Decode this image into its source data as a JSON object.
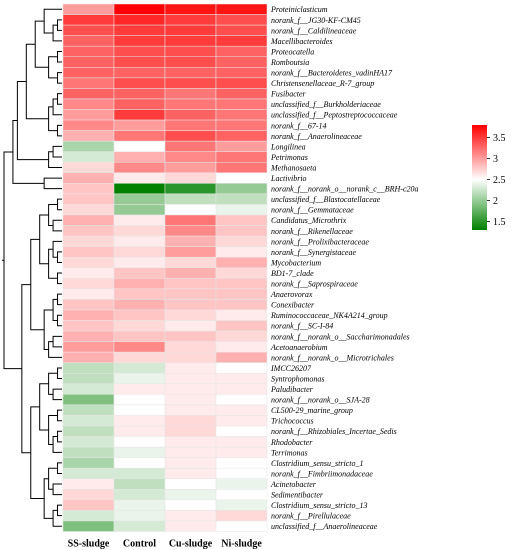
{
  "chart_data": {
    "type": "heatmap",
    "columns": [
      "SS-sludge",
      "Control",
      "Cu-sludge",
      "Ni-sludge"
    ],
    "rows": [
      "Proteiniclasticum",
      "norank_f__JG30-KF-CM45",
      "norank_f__Caldilineaceae",
      "Macellibacteroides",
      "Proteocatella",
      "Romboutsia",
      "norank_f__Bacteroidetes_vadinHA17",
      "Christensenellaceae_R-7_group",
      "Fusibacter",
      "unclassified_f__Burkholderiaceae",
      "unclassified_f__Peptostreptococcaceae",
      "norank_f__67-14",
      "norank_f__Anaerolineaceae",
      "Longilinea",
      "Petrimonas",
      "Methanosaeta",
      "Lactivibrio",
      "norank_f__norank_o__norank_c__BRH-c20a",
      "unclassified_f__Blastocatellaceae",
      "norank_f__Gemmataceae",
      "Candidatus_Microthrix",
      "norank_f__Rikenellaceae",
      "norank_f__Prolixibacteraceae",
      "norank_f__Synergistaceae",
      "Mycobacterium",
      "BD1-7_clade",
      "norank_f__Saprospiraceae",
      "Anaerovorax",
      "Conexibacter",
      "Ruminococcaceae_NK4A214_group",
      "norank_f__SC-I-84",
      "norank_f__norank_o__Saccharimonadales",
      "Acetoanaerobium",
      "norank_f__norank_o__Microtrichales",
      "IMCC26207",
      "Syntrophomonas",
      "Paludibacter",
      "norank_f__norank_o__SJA-28",
      "CL500-29_marine_group",
      "Trichococcus",
      "norank_f__Rhizobiales_Incertae_Sedis",
      "Rhodobacter",
      "Terrimonas",
      "Clostridium_sensu_stricto_1",
      "norank_f__Fimbriimonadaceae",
      "Acinetobacter",
      "Sedimentibacter",
      "Clostridium_sensu_stricto_13",
      "norank_f__Pirellulaceae",
      "unclassified_f__Anaerolineaceae"
    ],
    "values": [
      [
        3.0,
        3.8,
        3.7,
        3.7
      ],
      [
        3.5,
        3.6,
        3.5,
        3.4
      ],
      [
        3.4,
        3.5,
        3.5,
        3.4
      ],
      [
        3.3,
        3.5,
        3.5,
        3.5
      ],
      [
        3.3,
        3.4,
        3.4,
        3.3
      ],
      [
        3.3,
        3.4,
        3.4,
        3.3
      ],
      [
        3.3,
        3.3,
        3.3,
        3.3
      ],
      [
        3.2,
        3.4,
        3.4,
        3.4
      ],
      [
        3.3,
        3.3,
        3.2,
        3.3
      ],
      [
        3.1,
        3.3,
        3.2,
        3.2
      ],
      [
        3.0,
        3.5,
        3.3,
        3.2
      ],
      [
        3.1,
        3.0,
        3.2,
        3.2
      ],
      [
        2.9,
        3.2,
        3.4,
        3.3
      ],
      [
        2.1,
        2.5,
        3.2,
        3.0
      ],
      [
        2.3,
        2.9,
        3.1,
        3.2
      ],
      [
        2.7,
        3.1,
        3.0,
        3.2
      ],
      [
        2.9,
        2.6,
        2.7,
        2.5
      ],
      [
        2.8,
        1.3,
        1.5,
        2.0
      ],
      [
        2.8,
        2.0,
        2.2,
        2.2
      ],
      [
        2.7,
        2.0,
        2.5,
        2.4
      ],
      [
        2.9,
        2.6,
        3.2,
        2.8
      ],
      [
        2.8,
        2.7,
        3.1,
        2.8
      ],
      [
        2.7,
        2.6,
        2.9,
        2.7
      ],
      [
        2.8,
        2.7,
        3.0,
        2.6
      ],
      [
        2.7,
        2.6,
        2.7,
        2.9
      ],
      [
        2.6,
        2.8,
        2.9,
        2.7
      ],
      [
        2.7,
        2.9,
        2.8,
        2.8
      ],
      [
        2.6,
        2.8,
        2.8,
        2.8
      ],
      [
        2.8,
        2.9,
        2.8,
        2.8
      ],
      [
        2.9,
        2.8,
        2.7,
        2.6
      ],
      [
        2.8,
        2.7,
        2.6,
        2.8
      ],
      [
        2.9,
        2.8,
        2.8,
        2.7
      ],
      [
        3.0,
        3.1,
        2.7,
        2.6
      ],
      [
        2.9,
        2.7,
        2.7,
        2.9
      ],
      [
        2.2,
        2.3,
        2.6,
        2.5
      ],
      [
        2.2,
        2.4,
        2.6,
        2.6
      ],
      [
        2.3,
        2.6,
        2.6,
        2.6
      ],
      [
        1.9,
        2.5,
        2.6,
        2.5
      ],
      [
        2.2,
        2.5,
        2.6,
        2.6
      ],
      [
        2.3,
        2.6,
        2.7,
        2.6
      ],
      [
        2.2,
        2.6,
        2.7,
        2.5
      ],
      [
        2.3,
        2.5,
        2.6,
        2.6
      ],
      [
        2.2,
        2.4,
        2.6,
        2.6
      ],
      [
        2.1,
        2.5,
        2.6,
        2.5
      ],
      [
        2.3,
        2.3,
        2.6,
        2.5
      ],
      [
        2.6,
        2.2,
        2.5,
        2.4
      ],
      [
        2.7,
        2.3,
        2.4,
        2.5
      ],
      [
        2.8,
        2.4,
        2.5,
        2.4
      ],
      [
        2.3,
        2.4,
        2.6,
        2.7
      ],
      [
        1.9,
        2.3,
        2.6,
        2.5
      ]
    ],
    "colorscale": {
      "min": 1.3,
      "mid": 2.5,
      "max": 3.8,
      "low_color": "#008000",
      "mid_color": "#ffffff",
      "high_color": "#ff0000"
    },
    "colorbar": {
      "ticks": [
        "1.5",
        "2",
        "2.5",
        "3",
        "3.5"
      ],
      "tick_values": [
        1.5,
        2,
        2.5,
        3,
        3.5
      ]
    },
    "row_dendrogram": true,
    "legend_position": "right"
  }
}
